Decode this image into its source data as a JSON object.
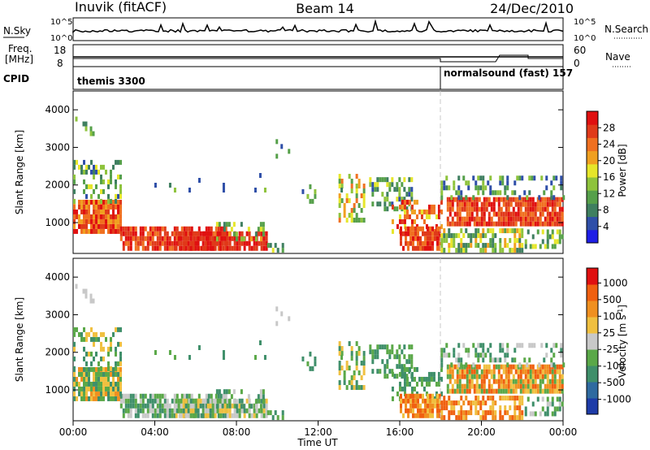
{
  "header": {
    "station": "Inuvik (fitACF)",
    "beam": "Beam 14",
    "date": "24/Dec/2010"
  },
  "noise_panel": {
    "left_label": "N.Sky",
    "right_label": "N.Search",
    "left_ticks": [
      "10^5",
      "10^0"
    ],
    "right_ticks": [
      "10^5",
      "10^0"
    ]
  },
  "freq_panel": {
    "left_label_line1": "Freq.",
    "left_label_line2": "[MHz]",
    "left_ticks": [
      "18",
      "8"
    ],
    "right_label": "Nave",
    "right_ticks": [
      "60",
      "0"
    ]
  },
  "cpid_panel": {
    "label": "CPID",
    "segments": [
      {
        "name": "themis",
        "id": "3300",
        "start_hour": 0.0,
        "end_hour": 18.0
      },
      {
        "name": "normalsound (fast)",
        "id": "157",
        "start_hour": 18.0,
        "end_hour": 24.0
      }
    ],
    "segment_text": [
      "themis 3300",
      "normalsound (fast) 157"
    ]
  },
  "chart_data": [
    {
      "type": "heatmap",
      "title": "",
      "quantity": "Power",
      "xlabel": "",
      "ylabel": "Slant Range [km]",
      "y_ticks": [
        "1000",
        "2000",
        "3000",
        "4000"
      ],
      "ylim": [
        180,
        4500
      ],
      "colorbar_label": "Power [dB]",
      "colorbar_ticks": [
        "4",
        "8",
        "12",
        "16",
        "20",
        "24",
        "28"
      ],
      "colorbar_colors": [
        "#1e1ee6",
        "#2f4fa8",
        "#3f7f60",
        "#56a04a",
        "#8ec33c",
        "#e6e62a",
        "#f0a020",
        "#f07020",
        "#e03a1a",
        "#e01010"
      ]
    },
    {
      "type": "heatmap",
      "title": "",
      "quantity": "Velocity",
      "xlabel": "Time UT",
      "ylabel": "Slant Range [km]",
      "y_ticks": [
        "1000",
        "2000",
        "3000",
        "4000"
      ],
      "ylim": [
        180,
        4500
      ],
      "colorbar_label": "Velocity [m s-1]",
      "colorbar_ticks": [
        "1000",
        "500",
        "100",
        "25",
        "-25",
        "-100",
        "-500",
        "-1000"
      ],
      "colorbar_colors": [
        "#1e3ca8",
        "#2f6aa0",
        "#3f8f6a",
        "#5aa848",
        "#c8c8c8",
        "#f0c040",
        "#f09020",
        "#f06010",
        "#e01010"
      ]
    }
  ],
  "time_axis": {
    "label": "Time UT",
    "ticks": [
      "00:00",
      "04:00",
      "08:00",
      "12:00",
      "16:00",
      "20:00",
      "00:00"
    ]
  }
}
